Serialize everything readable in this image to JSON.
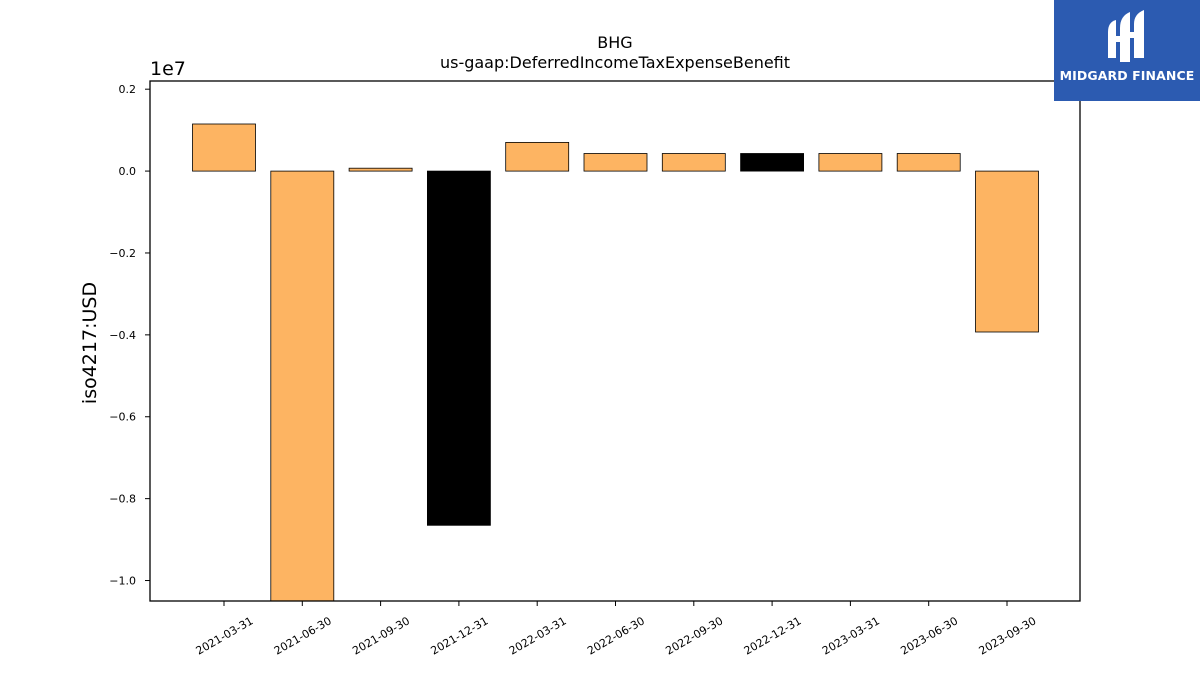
{
  "chart_data": {
    "type": "bar",
    "title": "BHG",
    "subtitle": "us-gaap:DeferredIncomeTaxExpenseBenefit",
    "ylabel": "iso4217:USD",
    "xlabel": "",
    "offset_label": "1e7",
    "categories": [
      "2021-03-31",
      "2021-06-30",
      "2021-09-30",
      "2021-12-31",
      "2022-03-31",
      "2022-06-30",
      "2022-09-30",
      "2022-12-31",
      "2023-03-31",
      "2023-06-30",
      "2023-09-30"
    ],
    "values": [
      1150000,
      -10600000,
      70000,
      -8650000,
      700000,
      430000,
      430000,
      430000,
      430000,
      430000,
      -3930000
    ],
    "highlight_index": [
      3,
      7
    ],
    "yticks": [
      0.2,
      0.0,
      -0.2,
      -0.4,
      -0.6,
      -0.8,
      -1.0
    ],
    "ytick_labels": [
      "0.2",
      "0.0",
      "−0.2",
      "−0.4",
      "−0.6",
      "−0.8",
      "−1.0"
    ],
    "ylim": [
      -10500000,
      2200000
    ],
    "grid": false,
    "colors": {
      "bar": "#fdb462",
      "highlight": "#000000",
      "edge": "#000000"
    }
  },
  "logo": {
    "text": "MIDGARD FINANCE",
    "background": "#2c5bb1"
  }
}
